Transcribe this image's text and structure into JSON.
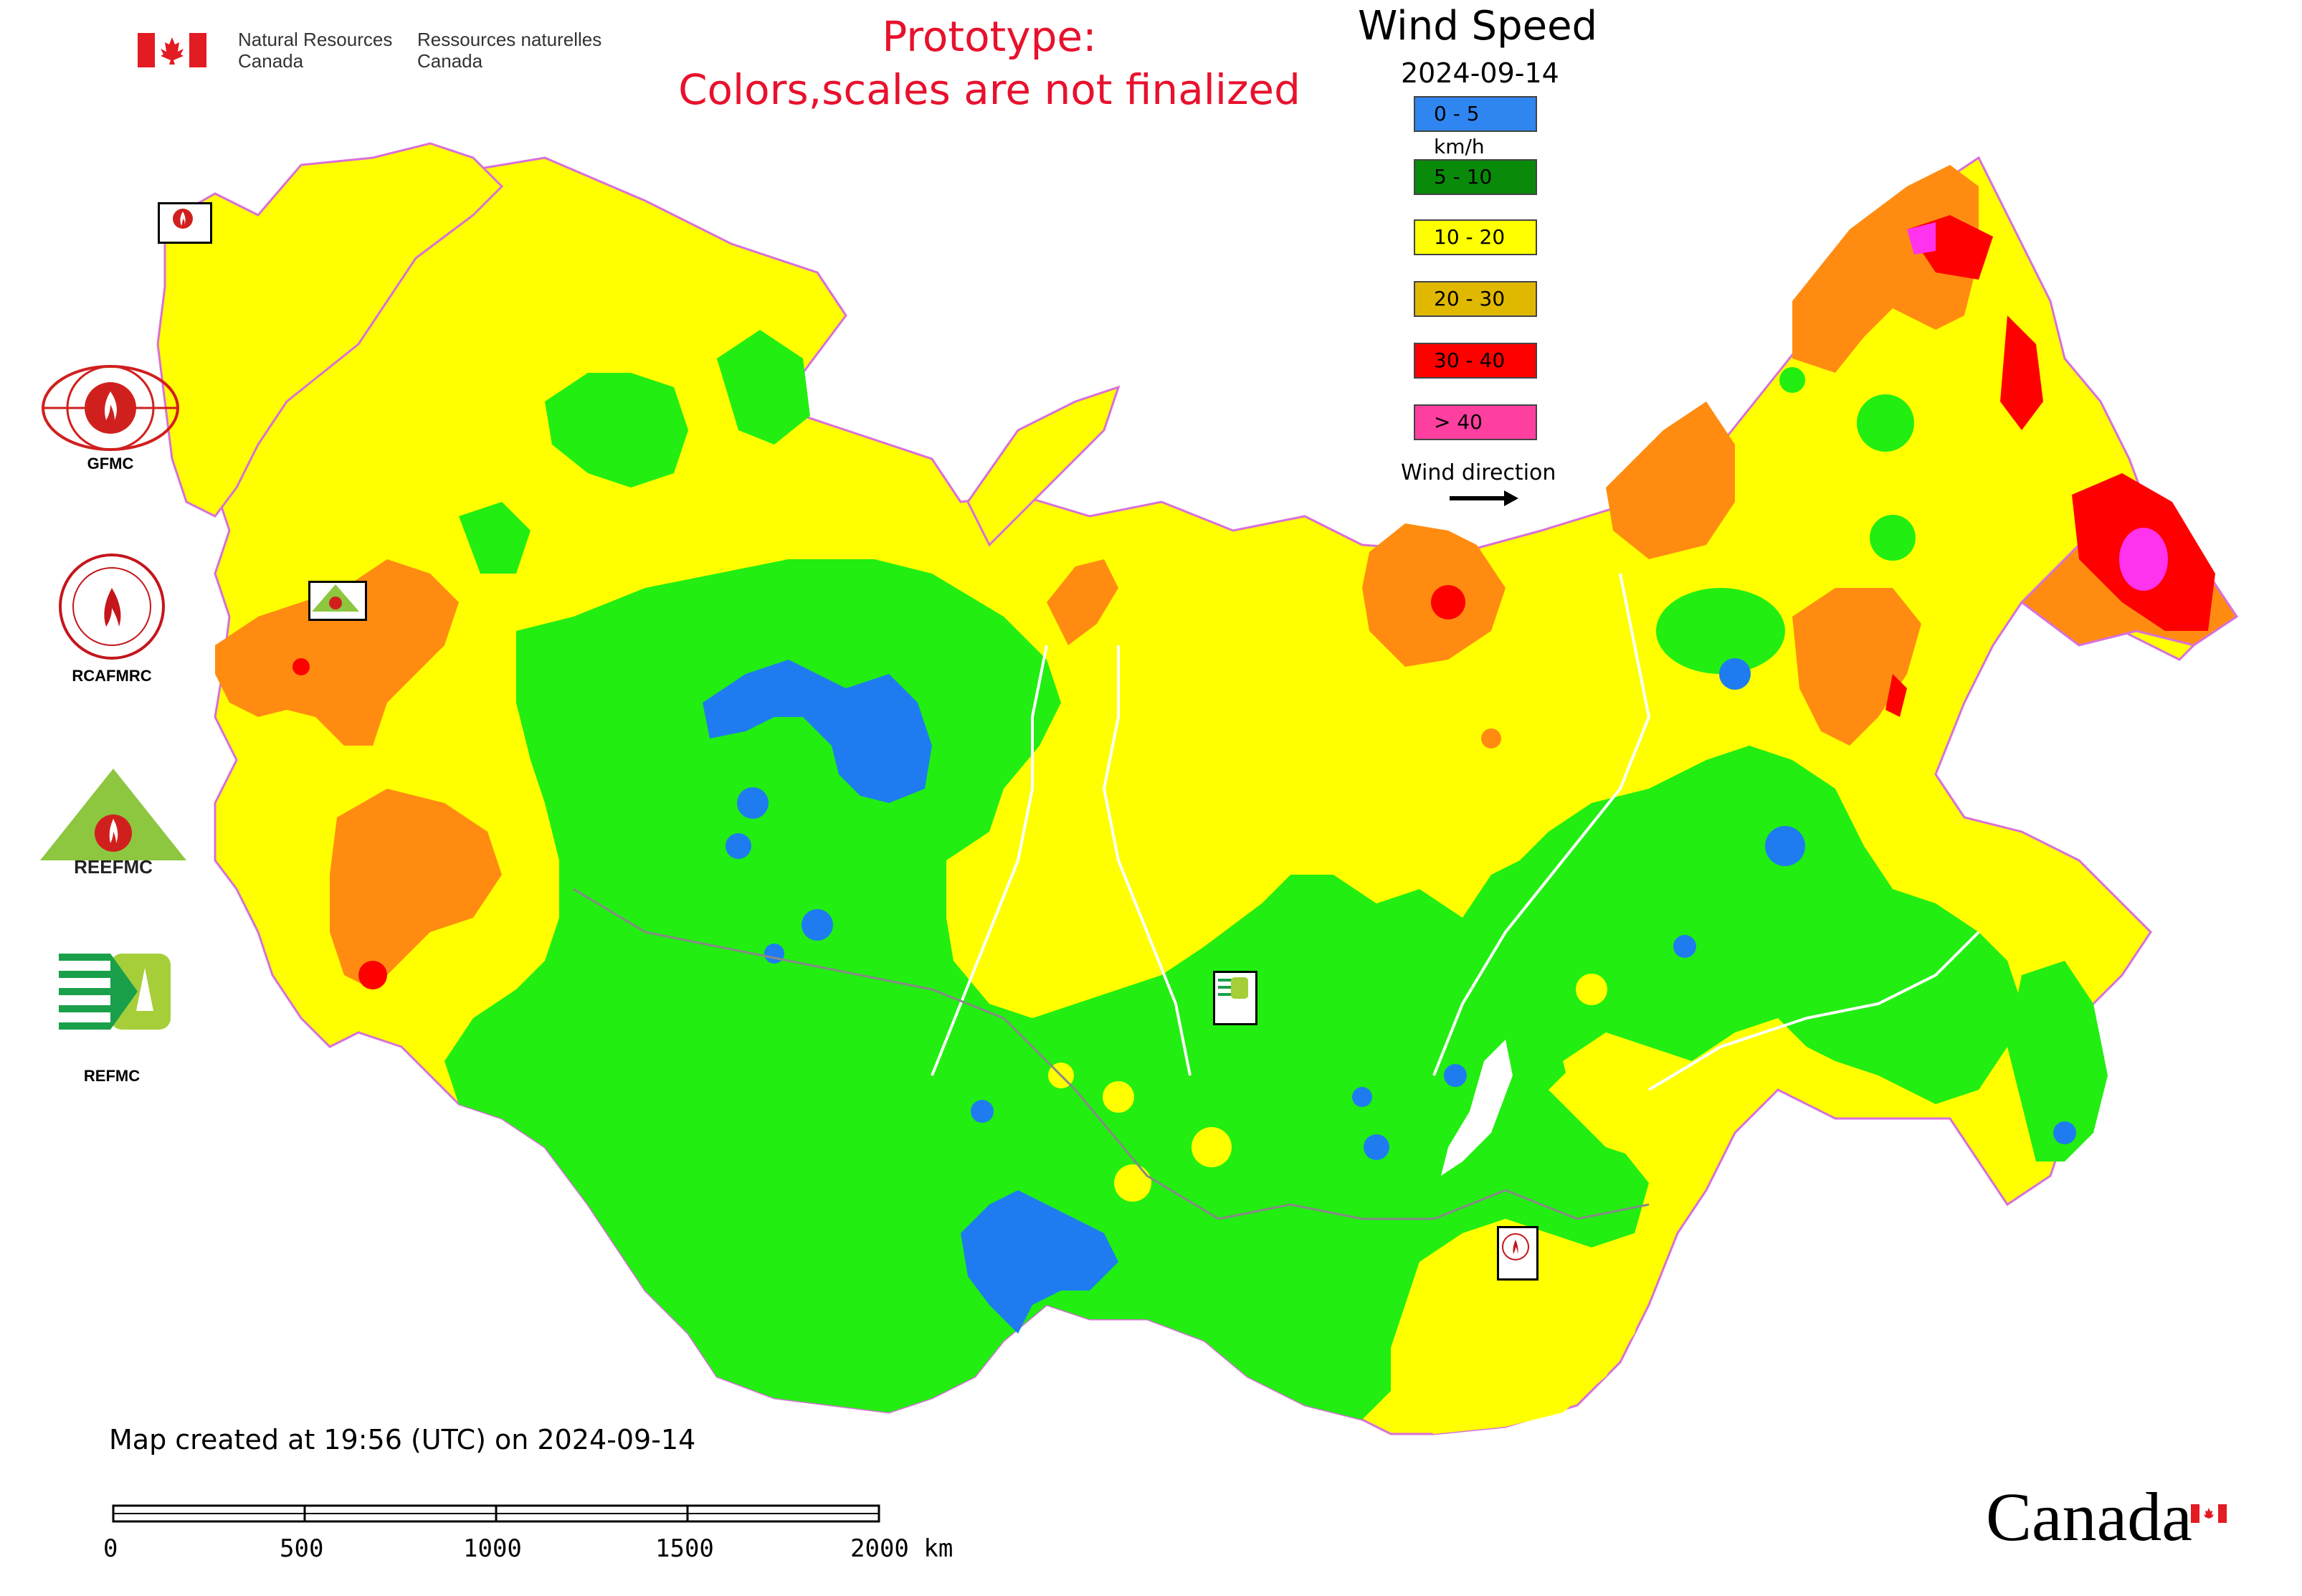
{
  "header": {
    "agency_en_1": "Natural Resources",
    "agency_en_2": "Canada",
    "agency_fr_1": "Ressources naturelles",
    "agency_fr_2": "Canada",
    "flag_icon": "canada-flag-icon"
  },
  "notice": {
    "line1": "Prototype:",
    "line2": "Colors,scales are not finalized",
    "color": "#e8112d"
  },
  "legend": {
    "title": "Wind Speed",
    "date": "2024-09-14",
    "classes": [
      {
        "label": "0 - 5 km/h",
        "color": "#2f86f0"
      },
      {
        "label": "5 - 10",
        "color": "#0a8a0a"
      },
      {
        "label": "10 - 20",
        "color": "#ffff00"
      },
      {
        "label": "20 - 30",
        "color": "#e0b800"
      },
      {
        "label": "30 - 40",
        "color": "#ff0000"
      },
      {
        "label": "> 40",
        "color": "#ff3fa0"
      }
    ],
    "wind_direction_label": "Wind direction",
    "arrow_icon": "arrow-right-icon"
  },
  "map_colors": {
    "calm": "#1e7cf0",
    "light": "#22ee11",
    "moderate": "#ffff00",
    "fresh": "#ff8c11",
    "strong": "#ff0000",
    "gale": "#ff33ee"
  },
  "centers": [
    {
      "label": "GFMC",
      "icon": "gfmc-logo-icon"
    },
    {
      "label": "RCAFMRC",
      "icon": "rcafmrc-logo-icon"
    },
    {
      "label": "",
      "icon": "reefmc-logo-icon"
    },
    {
      "label": "REFMC",
      "icon": "refmc-logo-icon"
    }
  ],
  "map_markers": [
    {
      "name": "gfmc-map-marker"
    },
    {
      "name": "reefmc-map-marker"
    },
    {
      "name": "refmc-map-marker"
    },
    {
      "name": "rcafmrc-map-marker"
    }
  ],
  "footer": {
    "created": "Map created at 19:56 (UTC) on 2024-09-14",
    "scale_ticks": [
      "0",
      "500",
      "1000",
      "1500",
      "2000 km"
    ],
    "canada_wordmark": "Canada"
  }
}
